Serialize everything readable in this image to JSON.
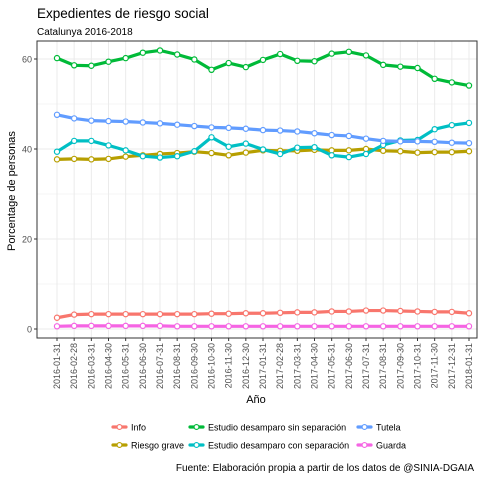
{
  "chart_data": {
    "type": "line",
    "title": "Expedientes de riesgo social",
    "subtitle": "Catalunya 2016-2018",
    "xlabel": "Año",
    "ylabel": "Porcentage de personas",
    "caption": "Fuente: Elaboración propia a partir de los datos de @SINIA-DGAIA",
    "ylim": [
      -2,
      64
    ],
    "yticks": [
      0,
      20,
      40,
      60
    ],
    "grid": true,
    "legend_position": "bottom",
    "x": [
      "2016-01-31",
      "2016-02-28",
      "2016-03-31",
      "2016-04-30",
      "2016-05-31",
      "2016-06-30",
      "2016-07-31",
      "2016-08-31",
      "2016-09-30",
      "2016-10-30",
      "2016-11-30",
      "2016-12-30",
      "2017-01-31",
      "2017-02-28",
      "2017-03-31",
      "2017-04-30",
      "2017-05-31",
      "2017-06-30",
      "2017-07-31",
      "2017-08-31",
      "2017-09-30",
      "2017-10-31",
      "2017-11-30",
      "2017-12-31",
      "2018-01-31"
    ],
    "series": [
      {
        "name": "Info",
        "color": "#F8766D",
        "values": [
          2.5,
          3.2,
          3.3,
          3.3,
          3.3,
          3.3,
          3.3,
          3.3,
          3.3,
          3.4,
          3.4,
          3.5,
          3.5,
          3.6,
          3.7,
          3.7,
          3.9,
          3.9,
          4.1,
          4.1,
          4.0,
          3.9,
          3.8,
          3.8,
          3.5
        ]
      },
      {
        "name": "Riesgo grave",
        "color": "#B79F00",
        "values": [
          37.7,
          37.8,
          37.7,
          37.8,
          38.3,
          38.6,
          38.9,
          39.1,
          39.4,
          39.1,
          38.6,
          39.2,
          39.7,
          39.6,
          39.6,
          39.8,
          39.7,
          39.7,
          40.0,
          39.6,
          39.5,
          39.2,
          39.3,
          39.3,
          39.5
        ]
      },
      {
        "name": "Estudio desamparo sin separación",
        "color": "#00BA38",
        "values": [
          60.2,
          58.6,
          58.5,
          59.4,
          60.2,
          61.4,
          61.9,
          61.0,
          59.9,
          57.6,
          59.1,
          58.2,
          59.8,
          61.1,
          59.6,
          59.5,
          61.2,
          61.6,
          60.8,
          58.7,
          58.3,
          58.0,
          55.6,
          54.8,
          54.1
        ]
      },
      {
        "name": "Estudio desamparo con separación",
        "color": "#00BFC4",
        "values": [
          39.4,
          41.8,
          41.8,
          40.8,
          39.7,
          38.4,
          38.1,
          38.4,
          39.5,
          42.6,
          40.5,
          41.2,
          39.9,
          38.9,
          40.3,
          40.4,
          38.6,
          38.2,
          38.9,
          40.9,
          41.9,
          42.0,
          44.4,
          45.3,
          45.8
        ]
      },
      {
        "name": "Tutela",
        "color": "#619CFF",
        "values": [
          47.6,
          46.8,
          46.3,
          46.2,
          46.1,
          45.9,
          45.7,
          45.4,
          45.1,
          44.8,
          44.7,
          44.5,
          44.2,
          44.1,
          43.9,
          43.5,
          43.1,
          42.9,
          42.3,
          41.8,
          41.7,
          41.7,
          41.6,
          41.4,
          41.3
        ]
      },
      {
        "name": "Guarda",
        "color": "#F564E3",
        "values": [
          0.6,
          0.7,
          0.7,
          0.7,
          0.7,
          0.7,
          0.7,
          0.6,
          0.6,
          0.6,
          0.6,
          0.6,
          0.6,
          0.6,
          0.6,
          0.6,
          0.6,
          0.6,
          0.6,
          0.6,
          0.6,
          0.6,
          0.6,
          0.6,
          0.6
        ]
      }
    ],
    "legend_order": [
      "Info",
      "Estudio desamparo sin separación",
      "Tutela",
      "Riesgo grave",
      "Estudio desamparo con separación",
      "Guarda"
    ]
  }
}
